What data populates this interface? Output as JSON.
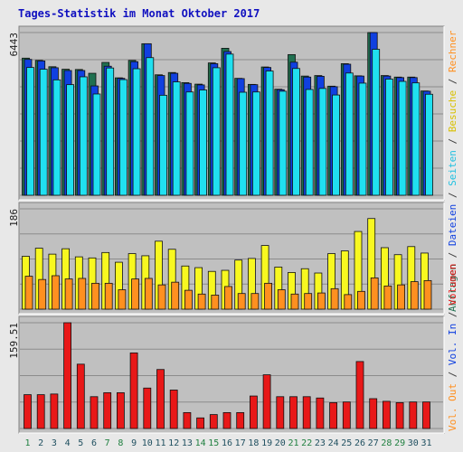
{
  "title": "Tages-Statistik im Monat Oktober 2017",
  "colors": {
    "page_bg": "#e8e8e8",
    "panel_bg": "#c0c0c0",
    "title": "#1010c0",
    "grid": "#8c8c8c",
    "day_weekday": "#205060",
    "day_weekend": "#208040",
    "anfragen": "#207050",
    "dateien": "#1040e0",
    "seiten": "#20e0f0",
    "besuche": "#f8f820",
    "rechner": "#ff9020",
    "vol_in": "#1040e0",
    "vol_out": "#ff9020",
    "volumen": "#e81818"
  },
  "right_legend": {
    "top": [
      {
        "text": "Anfragen",
        "color": "#207050"
      },
      {
        "text": " / ",
        "color": "#404040"
      },
      {
        "text": "Dateien",
        "color": "#1040e0"
      },
      {
        "text": " / ",
        "color": "#404040"
      },
      {
        "text": "Seiten",
        "color": "#20c0e0"
      },
      {
        "text": " / ",
        "color": "#404040"
      },
      {
        "text": "Besuche",
        "color": "#d8c000"
      },
      {
        "text": " / ",
        "color": "#404040"
      },
      {
        "text": "Rechner",
        "color": "#ff9020"
      }
    ],
    "bottom": [
      {
        "text": "Vol. Out",
        "color": "#ff9020"
      },
      {
        "text": " / ",
        "color": "#404040"
      },
      {
        "text": "Vol. In",
        "color": "#1040e0"
      },
      {
        "text": " / ",
        "color": "#404040"
      },
      {
        "text": "Volumen",
        "color": "#e81818"
      }
    ]
  },
  "chart_data": {
    "type": "bar",
    "title": "Tages-Statistik im Monat Oktober 2017",
    "days": [
      "1",
      "2",
      "3",
      "4",
      "5",
      "6",
      "7",
      "8",
      "9",
      "10",
      "11",
      "12",
      "13",
      "14",
      "15",
      "16",
      "17",
      "18",
      "19",
      "20",
      "21",
      "22",
      "23",
      "24",
      "25",
      "26",
      "27",
      "28",
      "29",
      "30",
      "31"
    ],
    "weekend_days": [
      1,
      7,
      8,
      14,
      15,
      21,
      22,
      28,
      29
    ],
    "panels": [
      {
        "id": "requests",
        "max_label": "6443",
        "ymax": 6443,
        "series": [
          {
            "name": "Anfragen",
            "values": [
              5430,
              5340,
              5090,
              4990,
              4980,
              4830,
              5260,
              4650,
              5340,
              6000,
              4770,
              4860,
              4460,
              4400,
              5240,
              5820,
              4630,
              4390,
              5080,
              4200,
              5570,
              4720,
              4740,
              4320,
              5210,
              4730,
              6443,
              4740,
              4680,
              4680,
              4130
            ]
          },
          {
            "name": "Dateien",
            "values": [
              5380,
              5320,
              5050,
              4940,
              4940,
              4330,
              5110,
              4630,
              5290,
              6000,
              4740,
              4830,
              4430,
              4370,
              5210,
              5690,
              4620,
              4380,
              5060,
              4180,
              5270,
              4680,
              4710,
              4300,
              5190,
              4720,
              6443,
              4720,
              4660,
              4660,
              4120
            ]
          },
          {
            "name": "Seiten",
            "values": [
              5060,
              4990,
              4570,
              4380,
              4690,
              4010,
              5040,
              4580,
              5010,
              5450,
              3960,
              4490,
              4090,
              4170,
              5050,
              5590,
              4080,
              4090,
              4920,
              4120,
              5020,
              4190,
              4230,
              3970,
              4840,
              4440,
              5780,
              4600,
              4510,
              4450,
              4000
            ]
          }
        ]
      },
      {
        "id": "visits",
        "max_label": "186",
        "ymax": 186,
        "series": [
          {
            "name": "Besuche",
            "values": [
              98,
              113,
              102,
              112,
              97,
              95,
              105,
              87,
              103,
              99,
              126,
              111,
              80,
              77,
              70,
              72,
              91,
              94,
              118,
              78,
              68,
              75,
              67,
              103,
              108,
              144,
              168,
              114,
              101,
              116,
              104
            ]
          },
          {
            "name": "Rechner",
            "values": [
              61,
              55,
              62,
              56,
              57,
              48,
              48,
              36,
              56,
              57,
              45,
              50,
              35,
              28,
              26,
              42,
              29,
              29,
              48,
              36,
              28,
              29,
              30,
              38,
              27,
              33,
              58,
              43,
              45,
              51,
              53
            ]
          }
        ]
      },
      {
        "id": "volume",
        "max_label": "159.51",
        "ymax": 159.51,
        "series": [
          {
            "name": "Volumen",
            "values": [
              51,
              51,
              52,
              159.51,
              97,
              48,
              54,
              54,
              114,
              61,
              89,
              58,
              24,
              16,
              21,
              24,
              24,
              49,
              81,
              48,
              48,
              48,
              46,
              39,
              40,
              101,
              45,
              41,
              39,
              40,
              40
            ]
          }
        ]
      }
    ],
    "grid": true
  }
}
